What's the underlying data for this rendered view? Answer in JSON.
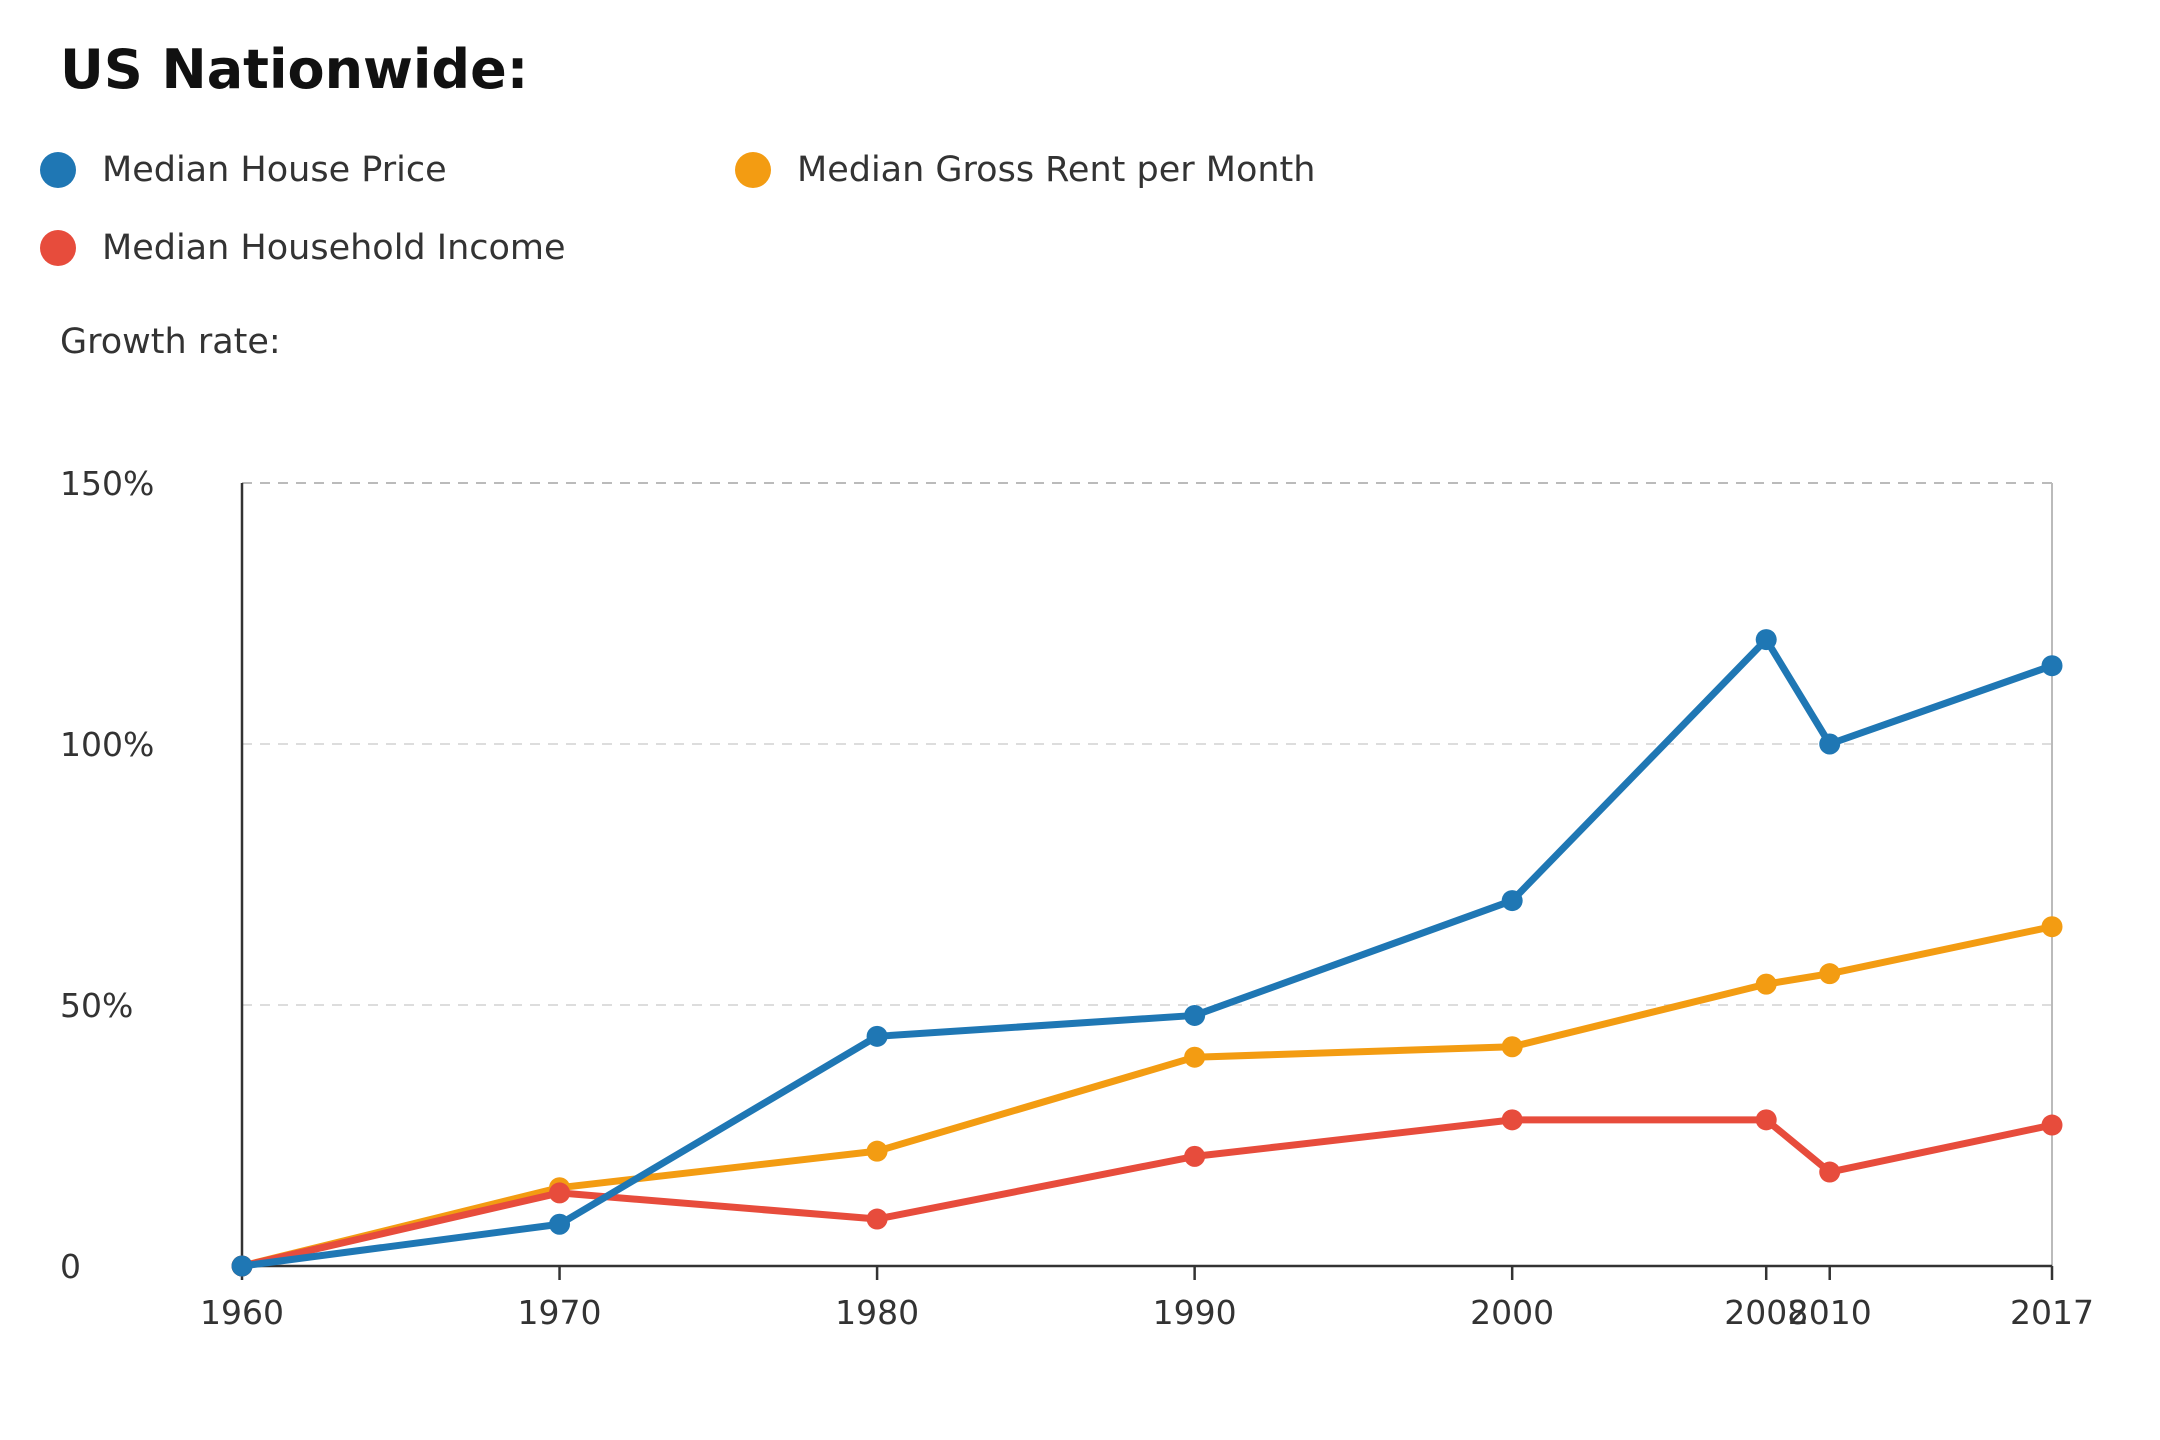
{
  "title": "US Nationwide:",
  "subtitle": "Growth rate:",
  "legend": [
    {
      "label": "Median House Price",
      "color": "#1f77b4"
    },
    {
      "label": "Median Gross Rent per Month",
      "color": "#f39c12"
    },
    {
      "label": "Median Household Income",
      "color": "#e74c3c"
    }
  ],
  "chart_data": {
    "type": "line",
    "x": [
      1960,
      1970,
      1980,
      1990,
      2000,
      2008,
      2010,
      2017
    ],
    "xlabels": [
      "1960",
      "1970",
      "1980",
      "1990",
      "2000",
      "2008",
      "2010",
      "2017"
    ],
    "ylim": [
      0,
      150
    ],
    "yticks": [
      0,
      50,
      100,
      150
    ],
    "ytick_labels": [
      "0",
      "50%",
      "100%",
      "150%"
    ],
    "grid": "horizontal dashed",
    "legend_position": "top-left",
    "series": [
      {
        "name": "Median Gross Rent per Month",
        "color": "#f39c12",
        "values": [
          0,
          15,
          22,
          40,
          42,
          54,
          56,
          65
        ]
      },
      {
        "name": "Median Household Income",
        "color": "#e74c3c",
        "values": [
          0,
          14,
          9,
          21,
          28,
          28,
          18,
          27
        ]
      },
      {
        "name": "Median House Price",
        "color": "#1f77b4",
        "values": [
          0,
          8,
          44,
          48,
          70,
          120,
          100,
          115
        ]
      }
    ]
  }
}
